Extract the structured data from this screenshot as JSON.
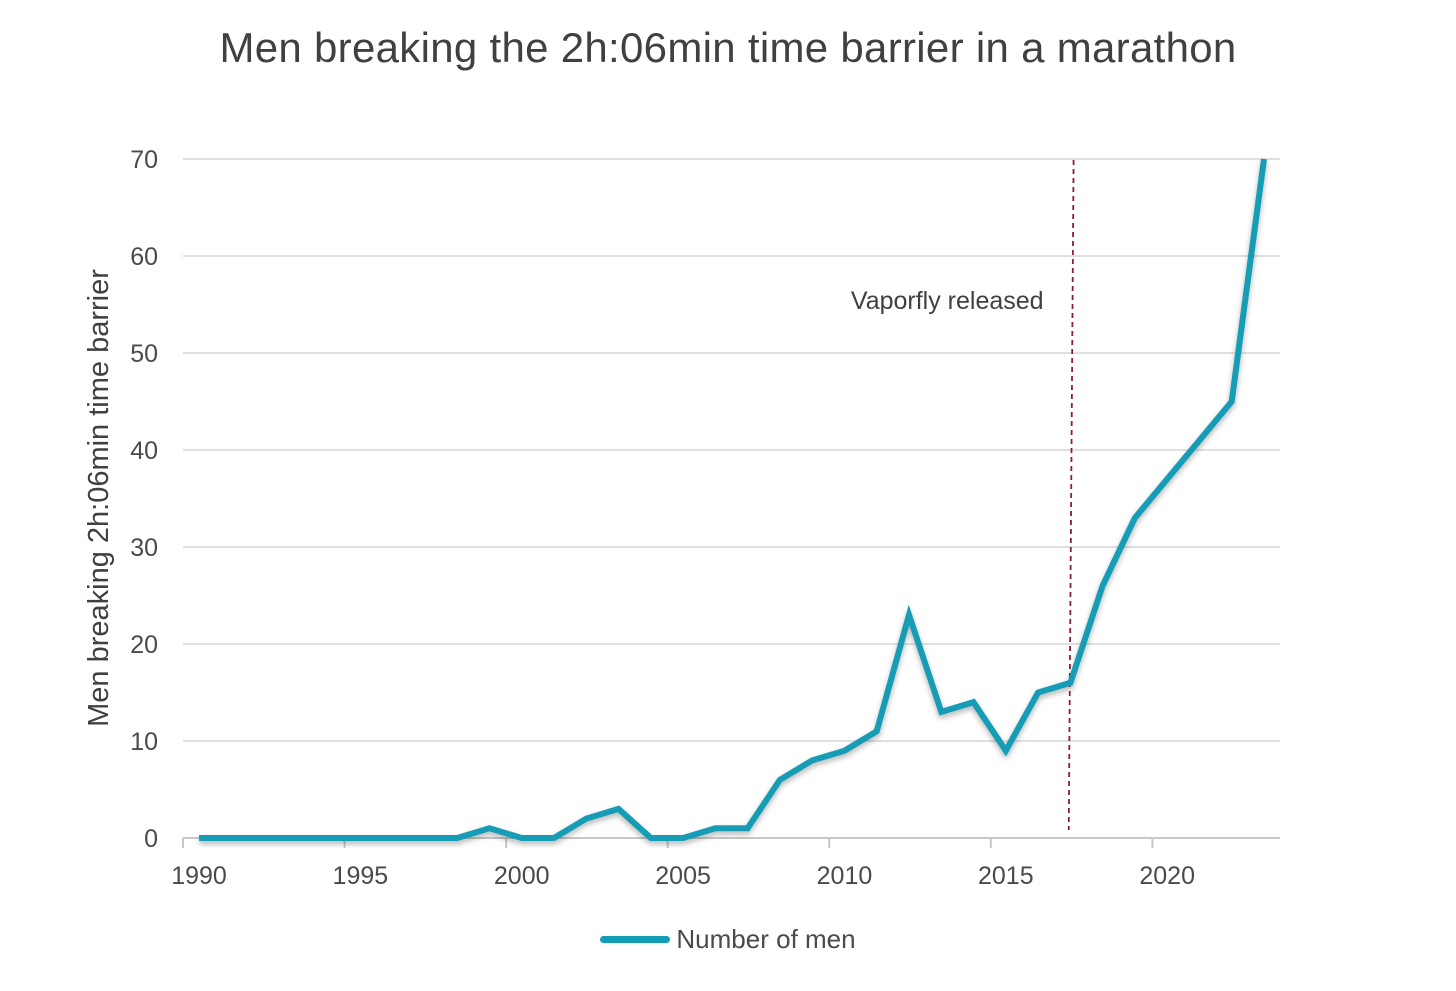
{
  "chart_data": {
    "type": "line",
    "title": "Men breaking the 2h:06min time barrier in a marathon",
    "ylabel": "Men breaking 2h:06min time barrier",
    "xlabel": "",
    "xlim": [
      1990,
      2023
    ],
    "ylim": [
      0,
      70
    ],
    "x_ticks": [
      1990,
      1995,
      2000,
      2005,
      2010,
      2015,
      2020
    ],
    "x_tick_labels": [
      "1990",
      "1995",
      "2000",
      "2005",
      "2010",
      "2015",
      "2020"
    ],
    "y_ticks": [
      0,
      10,
      20,
      30,
      40,
      50,
      60,
      70
    ],
    "y_tick_labels": [
      "0",
      "10",
      "20",
      "30",
      "40",
      "50",
      "60",
      "70"
    ],
    "grid": "horizontal",
    "legend_position": "bottom",
    "series": [
      {
        "name": "Number of men",
        "color": "#139cb5",
        "x": [
          1990,
          1991,
          1992,
          1993,
          1994,
          1995,
          1996,
          1997,
          1998,
          1999,
          2000,
          2001,
          2002,
          2003,
          2004,
          2005,
          2006,
          2007,
          2008,
          2009,
          2010,
          2011,
          2012,
          2013,
          2014,
          2015,
          2016,
          2017,
          2018,
          2019,
          2020,
          2021,
          2022,
          2023
        ],
        "values": [
          0,
          0,
          0,
          0,
          0,
          0,
          0,
          0,
          0,
          1,
          0,
          0,
          2,
          3,
          0,
          0,
          1,
          1,
          6,
          8,
          9,
          11,
          23,
          13,
          14,
          9,
          15,
          16,
          26,
          33,
          37,
          41,
          45,
          70
        ]
      }
    ],
    "annotations": [
      {
        "label": "Vaporfly released",
        "x": 2017,
        "style": "dashed vertical line",
        "color": "#8b1a4a"
      }
    ]
  }
}
